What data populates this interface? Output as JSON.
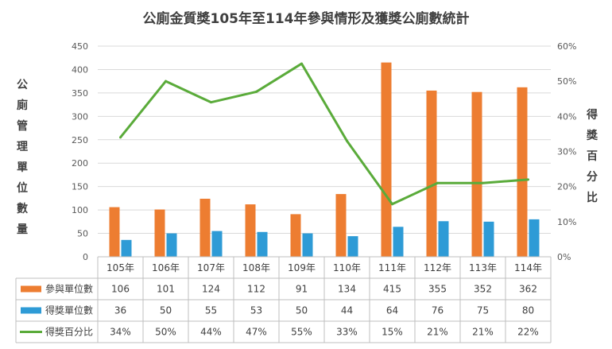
{
  "chart_data": {
    "type": "bar",
    "title": "公廁金質獎105年至114年參與情形及獲獎公廁數統計",
    "categories": [
      "105年",
      "106年",
      "107年",
      "108年",
      "109年",
      "110年",
      "111年",
      "112年",
      "113年",
      "114年"
    ],
    "series": [
      {
        "name": "參與單位數",
        "type": "bar",
        "axis": "left",
        "color": "#ed7d31",
        "values": [
          106,
          101,
          124,
          112,
          91,
          134,
          415,
          355,
          352,
          362
        ]
      },
      {
        "name": "得獎單位數",
        "type": "bar",
        "axis": "left",
        "color": "#2e9bd6",
        "values": [
          36,
          50,
          55,
          53,
          50,
          44,
          64,
          76,
          75,
          80
        ]
      },
      {
        "name": "得獎百分比",
        "type": "line",
        "axis": "right",
        "color": "#5aab3a",
        "values": [
          34,
          50,
          44,
          47,
          55,
          33,
          15,
          21,
          21,
          22
        ],
        "labels": [
          "34%",
          "50%",
          "44%",
          "47%",
          "55%",
          "33%",
          "15%",
          "21%",
          "21%",
          "22%"
        ]
      }
    ],
    "ylabel": "公廁管理單位數量",
    "y2label": "得獎百分比",
    "ylim": [
      0,
      450
    ],
    "yticks": [
      "0",
      "50",
      "100",
      "150",
      "200",
      "250",
      "300",
      "350",
      "400",
      "450"
    ],
    "y2lim": [
      0,
      60
    ],
    "y2ticks": [
      "0%",
      "10%",
      "20%",
      "30%",
      "40%",
      "50%",
      "60%"
    ],
    "grid": true,
    "legend": "data-table"
  }
}
